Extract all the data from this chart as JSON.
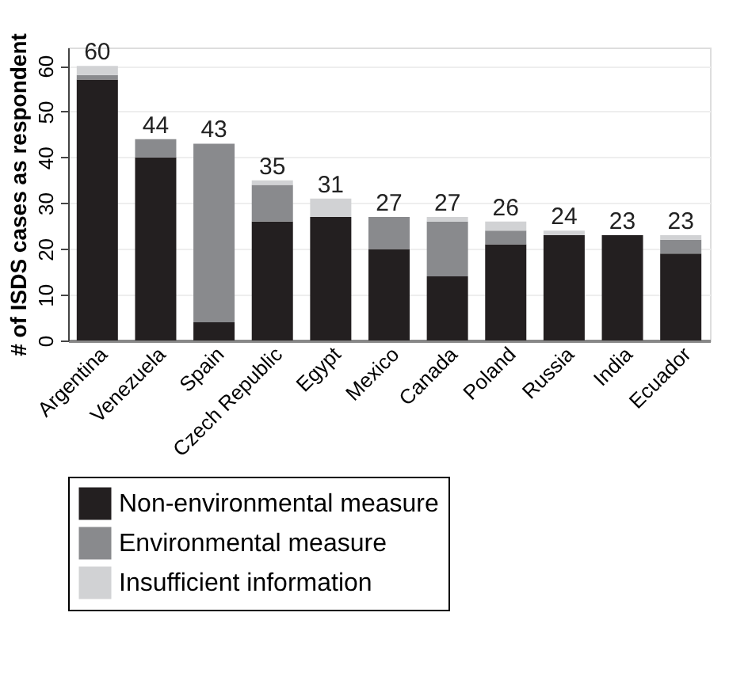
{
  "chart_data": {
    "type": "bar",
    "stacked": true,
    "ylabel": "# of ISDS cases as respondent",
    "categories": [
      "Argentina",
      "Venezuela",
      "Spain",
      "Czech Republic",
      "Egypt",
      "Mexico",
      "Canada",
      "Poland",
      "Russia",
      "India",
      "Ecuador"
    ],
    "series": [
      {
        "name": "Non-environmental measure",
        "color": "#231f20",
        "values": [
          57,
          40,
          4,
          26,
          27,
          20,
          14,
          21,
          23,
          23,
          19
        ]
      },
      {
        "name": "Environmental measure",
        "color": "#898a8d",
        "values": [
          1,
          4,
          39,
          8,
          0,
          7,
          12,
          3,
          0,
          0,
          3
        ]
      },
      {
        "name": "Insufficient information",
        "color": "#d1d2d4",
        "values": [
          2,
          0,
          0,
          1,
          4,
          0,
          1,
          2,
          1,
          0,
          1
        ]
      }
    ],
    "totals": [
      "60",
      "44",
      "43",
      "35",
      "31",
      "27",
      "27",
      "26",
      "24",
      "23",
      "23"
    ],
    "ylim": [
      0,
      64
    ],
    "yticks": [
      0,
      10,
      20,
      30,
      40,
      50,
      60
    ],
    "grid": "y",
    "legend": "bottom"
  }
}
